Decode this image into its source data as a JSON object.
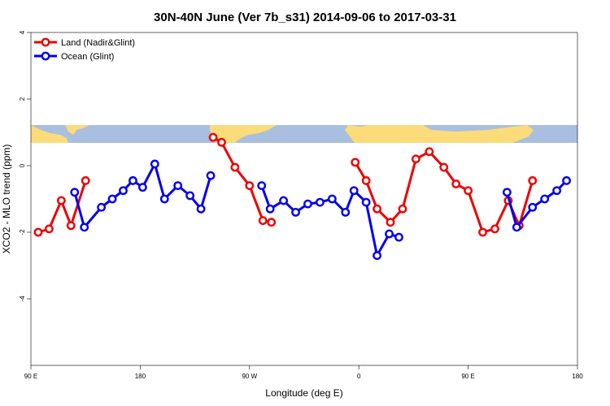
{
  "chart_data": {
    "type": "line",
    "title": "30N-40N June (Ver 7b_s31)   2014-09-06 to 2017-03-31",
    "xlabel": "Longitude (deg E)",
    "ylabel": "XCO2 - MLO trend (ppm)",
    "xlim": [
      90,
      540
    ],
    "ylim": [
      -6,
      4
    ],
    "x_ticks": [
      {
        "value": 90,
        "label": "90 E"
      },
      {
        "value": 180,
        "label": "180"
      },
      {
        "value": 270,
        "label": "90 W"
      },
      {
        "value": 360,
        "label": "0"
      },
      {
        "value": 450,
        "label": "90 E"
      },
      {
        "value": 540,
        "label": "180"
      }
    ],
    "y_ticks": [
      {
        "value": -4,
        "label": "-4"
      },
      {
        "value": -2,
        "label": "-2"
      },
      {
        "value": 0,
        "label": "0"
      },
      {
        "value": 2,
        "label": "2"
      },
      {
        "value": 4,
        "label": "4"
      }
    ],
    "grid": false,
    "legend_position": "top-left",
    "land_band": {
      "y_min": 0.65,
      "y_max": 1.2,
      "colors": {
        "land": "#fcdb7a",
        "ocean": "#a9bfdf"
      }
    },
    "series": [
      {
        "name": "Land (Nadir&Glint)",
        "color": "#ee0000",
        "segments": [
          [
            [
              96,
              -2.0
            ],
            [
              105,
              -1.9
            ],
            [
              115,
              -1.05
            ],
            [
              123,
              -1.8
            ],
            [
              135,
              -0.45
            ]
          ],
          [
            [
              240,
              0.85
            ],
            [
              247,
              0.7
            ],
            [
              258,
              -0.05
            ],
            [
              270,
              -0.6
            ],
            [
              281,
              -1.65
            ],
            [
              288,
              -1.7
            ]
          ],
          [
            [
              357,
              0.1
            ],
            [
              366,
              -0.45
            ],
            [
              375,
              -1.3
            ],
            [
              386,
              -1.7
            ],
            [
              396,
              -1.3
            ],
            [
              407,
              0.2
            ],
            [
              418,
              0.42
            ],
            [
              430,
              -0.05
            ],
            [
              440,
              -0.55
            ],
            [
              450,
              -0.75
            ],
            [
              462,
              -2.0
            ],
            [
              472,
              -1.9
            ],
            [
              483,
              -1.05
            ],
            [
              492,
              -1.8
            ],
            [
              503,
              -0.45
            ]
          ]
        ]
      },
      {
        "name": "Ocean (Glint)",
        "color": "#0000ee",
        "segments": [
          [
            [
              126,
              -0.8
            ],
            [
              134,
              -1.85
            ],
            [
              148,
              -1.25
            ],
            [
              157,
              -1.0
            ],
            [
              166,
              -0.75
            ],
            [
              174,
              -0.45
            ],
            [
              182,
              -0.65
            ],
            [
              192,
              0.05
            ],
            [
              200,
              -1.0
            ],
            [
              211,
              -0.6
            ],
            [
              221,
              -0.9
            ],
            [
              230,
              -1.3
            ],
            [
              238,
              -0.3
            ]
          ],
          [
            [
              280,
              -0.6
            ],
            [
              287,
              -1.3
            ],
            [
              298,
              -1.05
            ],
            [
              308,
              -1.4
            ],
            [
              318,
              -1.15
            ],
            [
              328,
              -1.1
            ],
            [
              338,
              -1.0
            ],
            [
              349,
              -1.4
            ],
            [
              356,
              -0.75
            ],
            [
              366,
              -1.1
            ],
            [
              375,
              -2.7
            ],
            [
              385,
              -2.05
            ],
            [
              393,
              -2.15
            ]
          ],
          [
            [
              482,
              -0.8
            ],
            [
              490,
              -1.85
            ],
            [
              503,
              -1.25
            ],
            [
              513,
              -1.0
            ],
            [
              523,
              -0.75
            ],
            [
              531,
              -0.45
            ]
          ]
        ]
      }
    ]
  }
}
